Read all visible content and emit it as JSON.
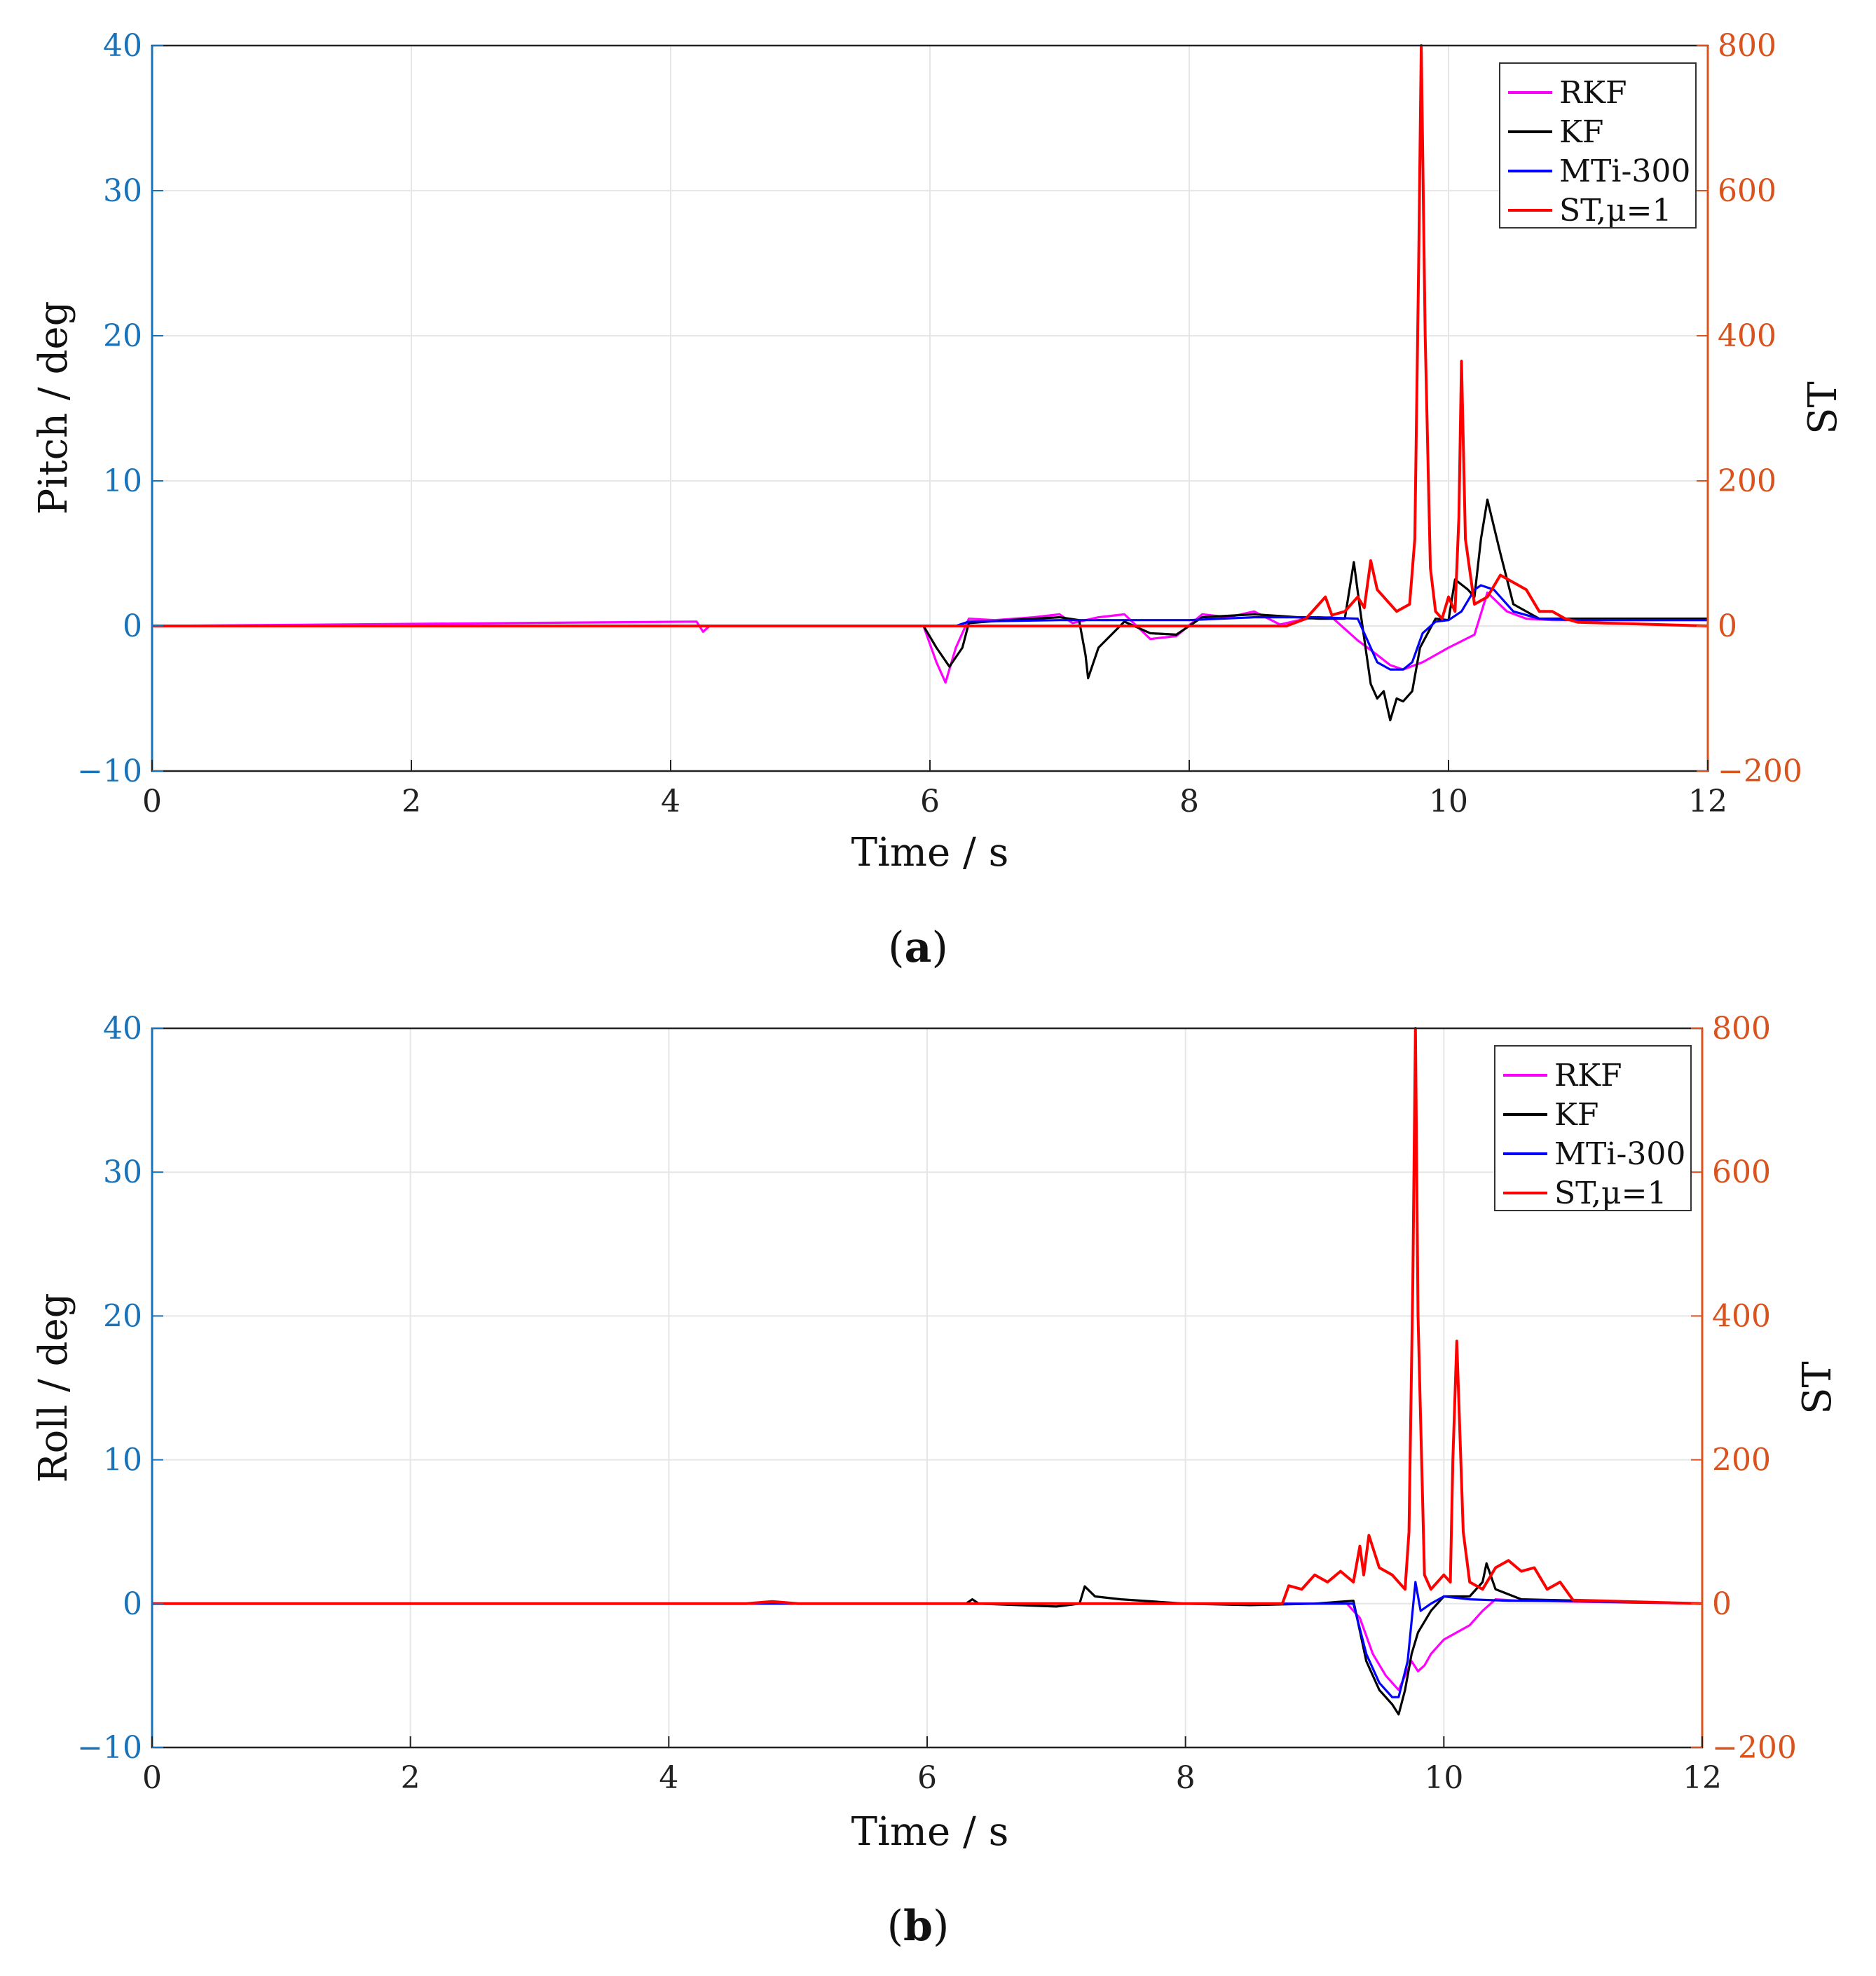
{
  "chart_data": [
    {
      "type": "line",
      "panel_label": "(a)",
      "panel_letter": "a",
      "xlabel": "Time / s",
      "ylabel": "Pitch / deg",
      "ylabel_right": "ST",
      "xlim": [
        0,
        12
      ],
      "ylim": [
        -10,
        40
      ],
      "ylim_right": [
        -200,
        800
      ],
      "x_ticks": [
        "0",
        "2",
        "4",
        "6",
        "8",
        "10",
        "12"
      ],
      "y_ticks": [
        "−10",
        "0",
        "10",
        "20",
        "30",
        "40"
      ],
      "y_ticks_right": [
        "−200",
        "0",
        "200",
        "400",
        "600",
        "800"
      ],
      "grid": true,
      "legend_position": "top-right",
      "series": [
        {
          "name": "RKF",
          "axis": "left",
          "color": "#ff00ff",
          "x": [
            0,
            4.2,
            4.25,
            4.3,
            5.95,
            6.05,
            6.12,
            6.2,
            6.3,
            6.5,
            6.8,
            7.0,
            7.1,
            7.3,
            7.5,
            7.7,
            7.9,
            8.1,
            8.3,
            8.5,
            8.7,
            8.9,
            9.1,
            9.3,
            9.45,
            9.55,
            9.65,
            9.8,
            10.0,
            10.2,
            10.3,
            10.45,
            10.6,
            10.8,
            12
          ],
          "y": [
            0,
            0.3,
            -0.4,
            0,
            0,
            -2.5,
            -3.9,
            -1.5,
            0.5,
            0.4,
            0.6,
            0.8,
            0.2,
            0.6,
            0.8,
            -0.9,
            -0.7,
            0.8,
            0.6,
            1.0,
            0.1,
            0.5,
            0.6,
            -1.0,
            -2.0,
            -2.7,
            -3.0,
            -2.5,
            -1.5,
            -0.6,
            2.3,
            1.0,
            0.5,
            0.4,
            0.4
          ]
        },
        {
          "name": "KF",
          "axis": "left",
          "color": "#000000",
          "x": [
            0,
            5.95,
            6.05,
            6.15,
            6.25,
            6.3,
            6.6,
            7.0,
            7.15,
            7.2,
            7.22,
            7.3,
            7.5,
            7.7,
            7.9,
            8.1,
            8.5,
            9.0,
            9.2,
            9.27,
            9.32,
            9.4,
            9.45,
            9.5,
            9.55,
            9.6,
            9.65,
            9.72,
            9.78,
            9.9,
            10.0,
            10.05,
            10.15,
            10.2,
            10.25,
            10.3,
            10.4,
            10.5,
            10.7,
            12
          ],
          "y": [
            0,
            0,
            -1.5,
            -2.8,
            -1.5,
            0.2,
            0.4,
            0.6,
            0.4,
            -2.0,
            -3.6,
            -1.5,
            0.3,
            -0.5,
            -0.6,
            0.6,
            0.8,
            0.5,
            0.5,
            4.4,
            1.0,
            -4.0,
            -5.0,
            -4.5,
            -6.5,
            -5.0,
            -5.2,
            -4.5,
            -1.5,
            0.5,
            0.4,
            3.2,
            2.5,
            2.0,
            6.0,
            8.7,
            5.0,
            1.5,
            0.5,
            0.5
          ]
        },
        {
          "name": "MTi-300",
          "axis": "left",
          "color": "#0000ff",
          "x": [
            0,
            6.2,
            6.3,
            7.0,
            8.0,
            8.5,
            9.0,
            9.3,
            9.45,
            9.55,
            9.65,
            9.72,
            9.8,
            9.9,
            10.0,
            10.1,
            10.2,
            10.25,
            10.35,
            10.5,
            10.7,
            11.0,
            12
          ],
          "y": [
            0,
            0,
            0.3,
            0.4,
            0.4,
            0.6,
            0.6,
            0.5,
            -2.5,
            -3.0,
            -3.0,
            -2.5,
            -0.5,
            0.3,
            0.4,
            1.0,
            2.5,
            2.8,
            2.5,
            1.0,
            0.5,
            0.4,
            0.4
          ]
        },
        {
          "name": "ST,μ=1",
          "axis": "right",
          "color": "#ff0000",
          "x": [
            0,
            8.75,
            8.9,
            9.0,
            9.05,
            9.1,
            9.2,
            9.3,
            9.35,
            9.4,
            9.45,
            9.5,
            9.6,
            9.7,
            9.74,
            9.77,
            9.79,
            9.82,
            9.86,
            9.9,
            9.95,
            10.0,
            10.05,
            10.08,
            10.1,
            10.13,
            10.2,
            10.3,
            10.4,
            10.5,
            10.6,
            10.7,
            10.8,
            10.9,
            11.0,
            12
          ],
          "y": [
            0,
            0,
            10,
            30,
            40,
            15,
            20,
            40,
            25,
            90,
            50,
            40,
            20,
            30,
            120,
            500,
            800,
            400,
            80,
            20,
            10,
            40,
            20,
            150,
            365,
            120,
            30,
            40,
            70,
            60,
            50,
            20,
            20,
            10,
            5,
            0
          ]
        }
      ]
    },
    {
      "type": "line",
      "panel_label": "(b)",
      "panel_letter": "b",
      "xlabel": "Time / s",
      "ylabel": "Roll / deg",
      "ylabel_right": "ST",
      "xlim": [
        0,
        12
      ],
      "ylim": [
        -10,
        40
      ],
      "ylim_right": [
        -200,
        800
      ],
      "x_ticks": [
        "0",
        "2",
        "4",
        "6",
        "8",
        "10",
        "12"
      ],
      "y_ticks": [
        "−10",
        "0",
        "10",
        "20",
        "30",
        "40"
      ],
      "y_ticks_right": [
        "−200",
        "0",
        "200",
        "400",
        "600",
        "800"
      ],
      "grid": true,
      "legend_position": "top-right",
      "series": [
        {
          "name": "RKF",
          "axis": "left",
          "color": "#ff00ff",
          "x": [
            0,
            9.25,
            9.35,
            9.45,
            9.55,
            9.65,
            9.75,
            9.8,
            9.85,
            9.9,
            10.0,
            10.1,
            10.2,
            10.3,
            10.4,
            10.6,
            12
          ],
          "y": [
            0,
            0,
            -1.0,
            -3.5,
            -5.0,
            -6.0,
            -4.0,
            -4.7,
            -4.3,
            -3.5,
            -2.5,
            -2.0,
            -1.5,
            -0.5,
            0.3,
            0.2,
            0.0
          ]
        },
        {
          "name": "KF",
          "axis": "left",
          "color": "#000000",
          "x": [
            0,
            6.3,
            6.35,
            6.4,
            7.0,
            7.18,
            7.22,
            7.3,
            7.5,
            8.0,
            8.5,
            9.0,
            9.3,
            9.4,
            9.5,
            9.6,
            9.65,
            9.7,
            9.75,
            9.8,
            9.9,
            10.0,
            10.2,
            10.3,
            10.33,
            10.4,
            10.6,
            12
          ],
          "y": [
            0,
            0,
            0.3,
            0,
            -0.2,
            0,
            1.2,
            0.5,
            0.3,
            0,
            -0.1,
            0,
            0.2,
            -4.0,
            -6.0,
            -7.0,
            -7.7,
            -6.0,
            -3.5,
            -2.0,
            -0.5,
            0.5,
            0.5,
            1.5,
            2.8,
            1.0,
            0.3,
            0.0
          ]
        },
        {
          "name": "MTi-300",
          "axis": "left",
          "color": "#0000ff",
          "x": [
            0,
            9.3,
            9.4,
            9.5,
            9.6,
            9.65,
            9.72,
            9.78,
            9.82,
            9.9,
            10.0,
            10.2,
            10.5,
            10.8,
            12
          ],
          "y": [
            0,
            0,
            -3.5,
            -5.5,
            -6.5,
            -6.5,
            -4.0,
            1.5,
            -0.5,
            0.0,
            0.5,
            0.3,
            0.2,
            0.2,
            0.0
          ]
        },
        {
          "name": "ST,μ=1",
          "axis": "right",
          "color": "#ff0000",
          "x": [
            0,
            4.6,
            4.8,
            5.0,
            8.75,
            8.8,
            8.9,
            9.0,
            9.1,
            9.2,
            9.3,
            9.35,
            9.38,
            9.42,
            9.5,
            9.6,
            9.7,
            9.73,
            9.76,
            9.78,
            9.8,
            9.85,
            9.9,
            10.0,
            10.05,
            10.07,
            10.1,
            10.15,
            10.2,
            10.3,
            10.4,
            10.5,
            10.6,
            10.7,
            10.8,
            10.9,
            11.0,
            12
          ],
          "y": [
            0,
            0,
            3,
            0,
            0,
            25,
            20,
            40,
            30,
            45,
            30,
            80,
            40,
            95,
            50,
            40,
            20,
            100,
            450,
            800,
            400,
            40,
            20,
            40,
            30,
            200,
            365,
            100,
            30,
            20,
            50,
            60,
            45,
            50,
            20,
            30,
            5,
            0
          ]
        }
      ],
      "legend_entries": [
        "RKF",
        "KF",
        "MTi-300",
        "ST,μ=1"
      ]
    }
  ],
  "colors": {
    "left_axis": "#1a73b8",
    "right_axis": "#d9531e",
    "grid": "#e6e6e6",
    "axes": "#222222"
  }
}
